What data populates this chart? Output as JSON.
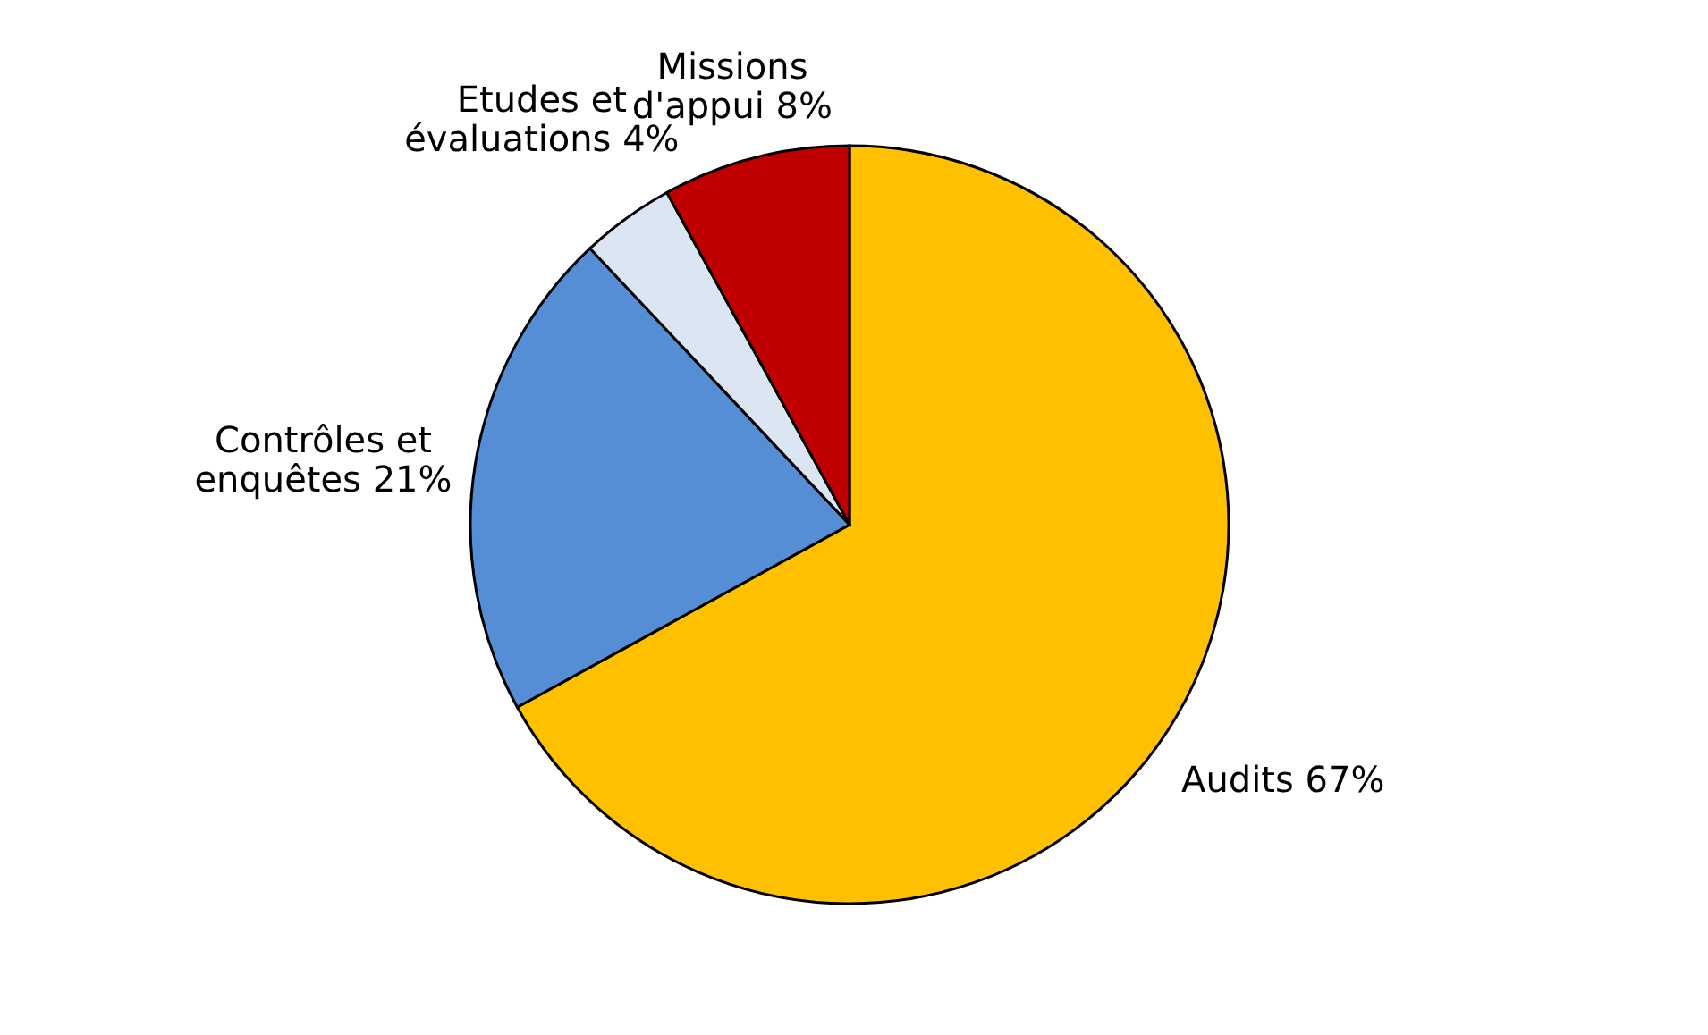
{
  "chart_data": {
    "type": "pie",
    "categories": [
      "Audits",
      "Contrôles et enquêtes",
      "Etudes et évaluations",
      "Missions d'appui"
    ],
    "values": [
      67,
      21,
      4,
      8
    ],
    "value_labels": [
      "67%",
      "21%",
      "4%",
      "8%"
    ],
    "colors": [
      "#ffc000",
      "#558ed5",
      "#dce6f2",
      "#c00000"
    ],
    "legend": false
  }
}
